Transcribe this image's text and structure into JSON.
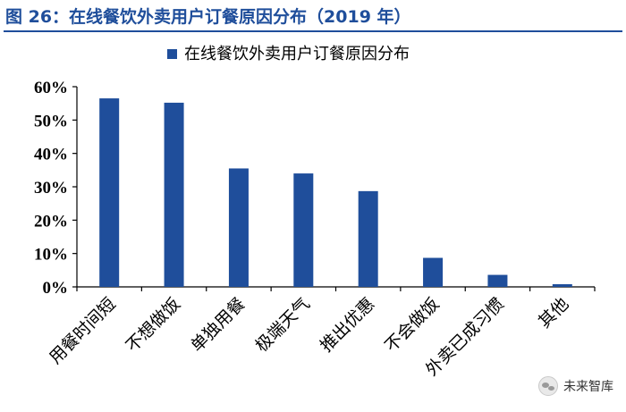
{
  "header": {
    "figure_title": "图 26：在线餐饮外卖用户订餐原因分布（2019 年）"
  },
  "watermark": {
    "text": "未来智库",
    "icon": "wechat-icon"
  },
  "colors": {
    "bar": "#1f4e9b",
    "title": "#1f4e9b",
    "axis": "#000000"
  },
  "chart_data": {
    "type": "bar",
    "title": "",
    "xlabel": "",
    "ylabel": "",
    "categories": [
      "用餐时间短",
      "不想做饭",
      "单独用餐",
      "极端天气",
      "推出优惠",
      "不会做饭",
      "外卖已成习惯",
      "其他"
    ],
    "series": [
      {
        "name": "在线餐饮外卖用户订餐原因分布",
        "values": [
          56.5,
          55.2,
          35.5,
          34.0,
          28.7,
          8.7,
          3.6,
          0.8
        ]
      }
    ],
    "ylim": [
      0,
      60
    ],
    "yticks": [
      "0%",
      "10%",
      "20%",
      "30%",
      "40%",
      "50%",
      "60%"
    ],
    "grid": false,
    "legend": "top-center"
  }
}
